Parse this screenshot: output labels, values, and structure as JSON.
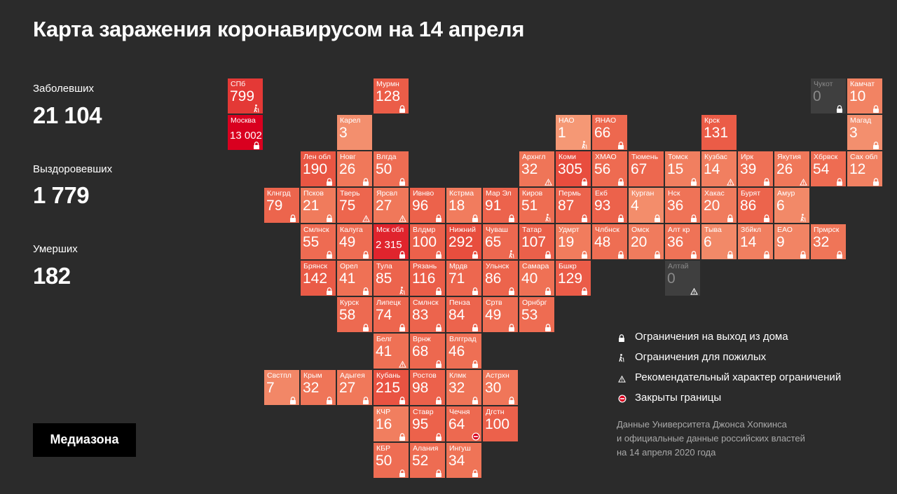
{
  "title": "Карта заражения коронавирусом на 14 апреля",
  "stats": {
    "infected_label": "Заболевших",
    "infected_value": "21 104",
    "recovered_label": "Выздоровевших",
    "recovered_value": "1 779",
    "deaths_label": "Умерших",
    "deaths_value": "182"
  },
  "regions": [
    {
      "name": "СПб",
      "value": "799",
      "col": 0,
      "row": 0,
      "icon": "elderly-icon"
    },
    {
      "name": "Москва",
      "value": "13 002",
      "col": 0,
      "row": 1,
      "icon": "lock-icon"
    },
    {
      "name": "Мурмн",
      "value": "128",
      "col": 4,
      "row": 0,
      "icon": "lock-icon"
    },
    {
      "name": "Чукот",
      "value": "0",
      "col": 16,
      "row": 0,
      "icon": "lock-icon",
      "grey": true
    },
    {
      "name": "Камчат",
      "value": "10",
      "col": 17,
      "row": 0,
      "icon": "lock-icon"
    },
    {
      "name": "Карел",
      "value": "3",
      "col": 3,
      "row": 1,
      "icon": ""
    },
    {
      "name": "НАО",
      "value": "1",
      "col": 9,
      "row": 1,
      "icon": "elderly-icon"
    },
    {
      "name": "ЯНАО",
      "value": "66",
      "col": 10,
      "row": 1,
      "icon": "lock-icon"
    },
    {
      "name": "Крск",
      "value": "131",
      "col": 13,
      "row": 1,
      "icon": ""
    },
    {
      "name": "Магад",
      "value": "3",
      "col": 17,
      "row": 1,
      "icon": "lock-icon"
    },
    {
      "name": "Лен обл",
      "value": "190",
      "col": 2,
      "row": 2,
      "icon": "lock-icon"
    },
    {
      "name": "Новг",
      "value": "26",
      "col": 3,
      "row": 2,
      "icon": "lock-icon"
    },
    {
      "name": "Влгда",
      "value": "50",
      "col": 4,
      "row": 2,
      "icon": "lock-icon"
    },
    {
      "name": "Архнгл",
      "value": "32",
      "col": 8,
      "row": 2,
      "icon": "warning-icon"
    },
    {
      "name": "Коми",
      "value": "305",
      "col": 9,
      "row": 2,
      "icon": "lock-icon"
    },
    {
      "name": "ХМАО",
      "value": "56",
      "col": 10,
      "row": 2,
      "icon": "lock-icon"
    },
    {
      "name": "Тюмень",
      "value": "67",
      "col": 11,
      "row": 2,
      "icon": ""
    },
    {
      "name": "Томск",
      "value": "15",
      "col": 12,
      "row": 2,
      "icon": "lock-icon"
    },
    {
      "name": "Кузбас",
      "value": "14",
      "col": 13,
      "row": 2,
      "icon": "warning-icon"
    },
    {
      "name": "Ирк",
      "value": "39",
      "col": 14,
      "row": 2,
      "icon": "lock-icon"
    },
    {
      "name": "Якутия",
      "value": "26",
      "col": 15,
      "row": 2,
      "icon": "warning-icon"
    },
    {
      "name": "Хбрвск",
      "value": "54",
      "col": 16,
      "row": 2,
      "icon": "lock-icon"
    },
    {
      "name": "Сах обл",
      "value": "12",
      "col": 17,
      "row": 2,
      "icon": "lock-icon"
    },
    {
      "name": "Клнгрд",
      "value": "79",
      "col": 1,
      "row": 3,
      "icon": "lock-icon"
    },
    {
      "name": "Псков",
      "value": "21",
      "col": 2,
      "row": 3,
      "icon": "lock-icon"
    },
    {
      "name": "Тверь",
      "value": "75",
      "col": 3,
      "row": 3,
      "icon": "warning-icon"
    },
    {
      "name": "Ярсвл",
      "value": "27",
      "col": 4,
      "row": 3,
      "icon": "warning-icon"
    },
    {
      "name": "Ивнво",
      "value": "96",
      "col": 5,
      "row": 3,
      "icon": "lock-icon"
    },
    {
      "name": "Кстрма",
      "value": "18",
      "col": 6,
      "row": 3,
      "icon": "lock-icon"
    },
    {
      "name": "Мар Эл",
      "value": "91",
      "col": 7,
      "row": 3,
      "icon": "lock-icon"
    },
    {
      "name": "Киров",
      "value": "51",
      "col": 8,
      "row": 3,
      "icon": "elderly-icon"
    },
    {
      "name": "Пермь",
      "value": "87",
      "col": 9,
      "row": 3,
      "icon": "lock-icon"
    },
    {
      "name": "Екб",
      "value": "93",
      "col": 10,
      "row": 3,
      "icon": "lock-icon"
    },
    {
      "name": "Курган",
      "value": "4",
      "col": 11,
      "row": 3,
      "icon": "lock-icon"
    },
    {
      "name": "Нск",
      "value": "36",
      "col": 12,
      "row": 3,
      "icon": "lock-icon"
    },
    {
      "name": "Хакас",
      "value": "20",
      "col": 13,
      "row": 3,
      "icon": "lock-icon"
    },
    {
      "name": "Бурят",
      "value": "86",
      "col": 14,
      "row": 3,
      "icon": "lock-icon"
    },
    {
      "name": "Амур",
      "value": "6",
      "col": 15,
      "row": 3,
      "icon": "elderly-icon"
    },
    {
      "name": "Смлнск",
      "value": "55",
      "col": 2,
      "row": 4,
      "icon": "lock-icon"
    },
    {
      "name": "Калуга",
      "value": "49",
      "col": 3,
      "row": 4,
      "icon": "lock-icon"
    },
    {
      "name": "Мск обл",
      "value": "2 315",
      "col": 4,
      "row": 4,
      "icon": "lock-icon"
    },
    {
      "name": "Влдмр",
      "value": "100",
      "col": 5,
      "row": 4,
      "icon": "lock-icon"
    },
    {
      "name": "Нижний",
      "value": "292",
      "col": 6,
      "row": 4,
      "icon": "lock-icon"
    },
    {
      "name": "Чуваш",
      "value": "65",
      "col": 7,
      "row": 4,
      "icon": "elderly-icon"
    },
    {
      "name": "Татар",
      "value": "107",
      "col": 8,
      "row": 4,
      "icon": "lock-icon"
    },
    {
      "name": "Удмрт",
      "value": "19",
      "col": 9,
      "row": 4,
      "icon": "lock-icon"
    },
    {
      "name": "Члбнск",
      "value": "48",
      "col": 10,
      "row": 4,
      "icon": "lock-icon"
    },
    {
      "name": "Омск",
      "value": "20",
      "col": 11,
      "row": 4,
      "icon": "lock-icon"
    },
    {
      "name": "Алт кр",
      "value": "36",
      "col": 12,
      "row": 4,
      "icon": "lock-icon"
    },
    {
      "name": "Тыва",
      "value": "6",
      "col": 13,
      "row": 4,
      "icon": "lock-icon"
    },
    {
      "name": "Збйкл",
      "value": "14",
      "col": 14,
      "row": 4,
      "icon": "lock-icon"
    },
    {
      "name": "ЕАО",
      "value": "9",
      "col": 15,
      "row": 4,
      "icon": "lock-icon"
    },
    {
      "name": "Прмрск",
      "value": "32",
      "col": 16,
      "row": 4,
      "icon": "lock-icon"
    },
    {
      "name": "Брянск",
      "value": "142",
      "col": 2,
      "row": 5,
      "icon": "lock-icon"
    },
    {
      "name": "Орел",
      "value": "41",
      "col": 3,
      "row": 5,
      "icon": "lock-icon"
    },
    {
      "name": "Тула",
      "value": "85",
      "col": 4,
      "row": 5,
      "icon": "elderly-icon"
    },
    {
      "name": "Рязань",
      "value": "116",
      "col": 5,
      "row": 5,
      "icon": "lock-icon"
    },
    {
      "name": "Мрдв",
      "value": "71",
      "col": 6,
      "row": 5,
      "icon": "lock-icon"
    },
    {
      "name": "Ульнск",
      "value": "86",
      "col": 7,
      "row": 5,
      "icon": "lock-icon"
    },
    {
      "name": "Самара",
      "value": "40",
      "col": 8,
      "row": 5,
      "icon": "lock-icon"
    },
    {
      "name": "Бшкр",
      "value": "129",
      "col": 9,
      "row": 5,
      "icon": "lock-icon"
    },
    {
      "name": "Алтай",
      "value": "0",
      "col": 12,
      "row": 5,
      "icon": "warning-icon",
      "grey": true
    },
    {
      "name": "Курск",
      "value": "58",
      "col": 3,
      "row": 6,
      "icon": "lock-icon"
    },
    {
      "name": "Липецк",
      "value": "74",
      "col": 4,
      "row": 6,
      "icon": "lock-icon"
    },
    {
      "name": "Смлнск",
      "value": "83",
      "col": 5,
      "row": 6,
      "icon": "lock-icon"
    },
    {
      "name": "Пенза",
      "value": "84",
      "col": 6,
      "row": 6,
      "icon": "lock-icon"
    },
    {
      "name": "Сртв",
      "value": "49",
      "col": 7,
      "row": 6,
      "icon": "lock-icon"
    },
    {
      "name": "Орнбрг",
      "value": "53",
      "col": 8,
      "row": 6,
      "icon": "lock-icon"
    },
    {
      "name": "Белг",
      "value": "41",
      "col": 4,
      "row": 7,
      "icon": "warning-icon"
    },
    {
      "name": "Врнж",
      "value": "68",
      "col": 5,
      "row": 7,
      "icon": "lock-icon"
    },
    {
      "name": "Влгград",
      "value": "46",
      "col": 6,
      "row": 7,
      "icon": "lock-icon"
    },
    {
      "name": "Свстпл",
      "value": "7",
      "col": 1,
      "row": 8,
      "icon": "lock-icon"
    },
    {
      "name": "Крым",
      "value": "32",
      "col": 2,
      "row": 8,
      "icon": "lock-icon"
    },
    {
      "name": "Адыгея",
      "value": "27",
      "col": 3,
      "row": 8,
      "icon": "lock-icon"
    },
    {
      "name": "Кубань",
      "value": "215",
      "col": 4,
      "row": 8,
      "icon": "lock-icon"
    },
    {
      "name": "Ростов",
      "value": "98",
      "col": 5,
      "row": 8,
      "icon": "lock-icon"
    },
    {
      "name": "Клмк",
      "value": "32",
      "col": 6,
      "row": 8,
      "icon": "lock-icon"
    },
    {
      "name": "Астрхн",
      "value": "30",
      "col": 7,
      "row": 8,
      "icon": "lock-icon"
    },
    {
      "name": "КЧР",
      "value": "16",
      "col": 4,
      "row": 9,
      "icon": "lock-icon"
    },
    {
      "name": "Ставр",
      "value": "95",
      "col": 5,
      "row": 9,
      "icon": "lock-icon"
    },
    {
      "name": "Чечня",
      "value": "64",
      "col": 6,
      "row": 9,
      "icon": "closed-border-icon"
    },
    {
      "name": "Дгстн",
      "value": "100",
      "col": 7,
      "row": 9,
      "icon": ""
    },
    {
      "name": "КБР",
      "value": "50",
      "col": 4,
      "row": 10,
      "icon": "lock-icon"
    },
    {
      "name": "Алания",
      "value": "52",
      "col": 5,
      "row": 10,
      "icon": "lock-icon"
    },
    {
      "name": "Ингуш",
      "value": "34",
      "col": 6,
      "row": 10,
      "icon": "lock-icon"
    }
  ],
  "legend": [
    {
      "icon": "lock-icon",
      "label": "Ограничения на выход из дома"
    },
    {
      "icon": "elderly-icon",
      "label": "Ограничения для пожилых"
    },
    {
      "icon": "warning-icon",
      "label": "Рекомендательный характер ограничений"
    },
    {
      "icon": "closed-border-icon",
      "label": "Закрыты границы"
    }
  ],
  "source": {
    "line1": "Данные Университета Джонса Хопкинса",
    "line2": "и официальные данные российских властей",
    "line3": "на 14 апреля 2020 года"
  },
  "logo": "Медиазона",
  "colors": {
    "background": "#2b2b2b",
    "grey_tile": "#3f3f3f",
    "low": "#f6a07c",
    "high": "#d9001f"
  }
}
